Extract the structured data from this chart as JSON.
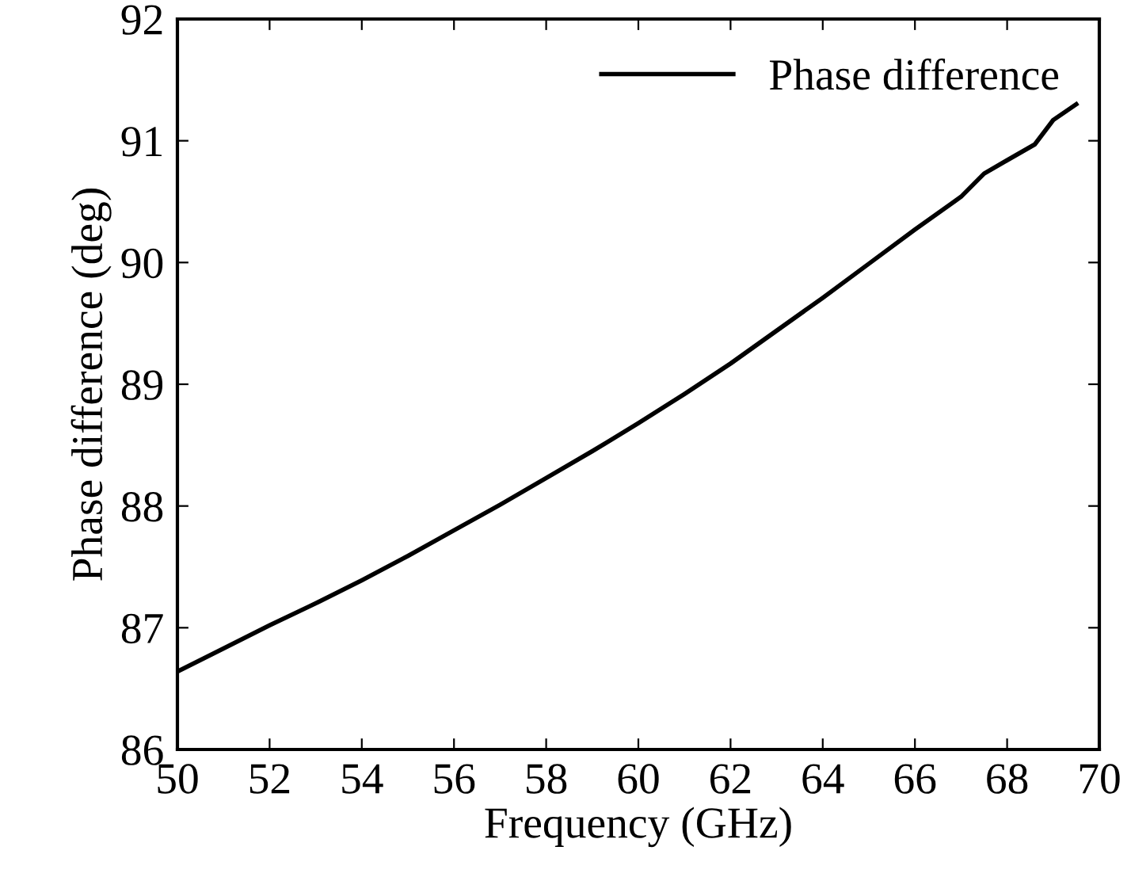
{
  "chart_data": {
    "type": "line",
    "xlabel": "Frequency (GHz)",
    "ylabel": "Phase difference (deg)",
    "x": [
      50,
      51,
      52,
      53,
      54,
      55,
      56,
      57,
      58,
      59,
      60,
      61,
      62,
      63,
      64,
      65,
      66,
      67,
      67.5,
      68,
      68.6,
      69,
      69.5
    ],
    "series": [
      {
        "name": "Phase difference",
        "color": "#000000",
        "values": [
          86.64,
          86.83,
          87.02,
          87.2,
          87.39,
          87.59,
          87.8,
          88.01,
          88.23,
          88.45,
          88.68,
          88.92,
          89.17,
          89.44,
          89.71,
          89.99,
          90.27,
          90.54,
          90.73,
          90.84,
          90.97,
          91.17,
          91.3
        ]
      }
    ],
    "xlim": [
      50,
      70
    ],
    "xticks": [
      50,
      52,
      54,
      56,
      58,
      60,
      62,
      64,
      66,
      68,
      70
    ],
    "ylim": [
      86,
      92
    ],
    "yticks": [
      86,
      87,
      88,
      89,
      90,
      91,
      92
    ],
    "grid": false,
    "legend": "top right",
    "marker": "none",
    "line_style": "solid"
  }
}
